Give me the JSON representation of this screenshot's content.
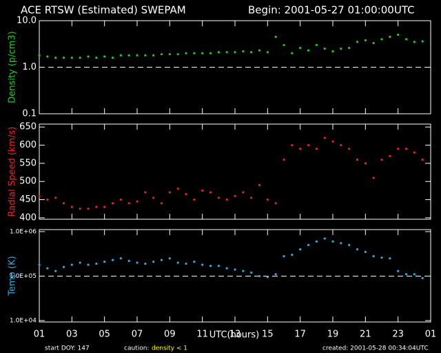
{
  "header": {
    "title": "ACE RTSW (Estimated) SWEPAM",
    "begin": "Begin: 2001-05-27 01:00:00UTC"
  },
  "x_label": "UTC(hours)",
  "footer": {
    "start": "start DOY: 147",
    "caution": "caution:",
    "caution_note": "density < 1",
    "created": "created: 2001-05-28 00:34:04UTC"
  },
  "chart_data": [
    {
      "type": "scatter",
      "ylabel": "Density (p/cm3)",
      "color": "#22cc22",
      "log": true,
      "ylim": [
        0.1,
        10
      ],
      "yticks": [
        {
          "value": 0.1,
          "label": "0.1"
        },
        {
          "value": 1,
          "label": "1.0"
        },
        {
          "value": 10,
          "label": "10.0"
        }
      ],
      "hline": 1,
      "xlim": [
        0,
        24
      ],
      "x": [
        0,
        0.5,
        1,
        1.5,
        2,
        2.5,
        3,
        3.5,
        4,
        4.5,
        5,
        5.5,
        6,
        6.5,
        7,
        7.5,
        8,
        8.5,
        9,
        9.5,
        10,
        10.5,
        11,
        11.5,
        12,
        12.5,
        13,
        13.5,
        14,
        14.5,
        15,
        15.5,
        16,
        16.5,
        17,
        17.5,
        18,
        18.5,
        19,
        19.5,
        20,
        20.5,
        21,
        21.5,
        22,
        22.5,
        23,
        23.5
      ],
      "values": [
        1.8,
        1.7,
        1.6,
        1.6,
        1.6,
        1.6,
        1.7,
        1.6,
        1.7,
        1.6,
        1.8,
        1.8,
        1.8,
        1.8,
        1.8,
        1.9,
        1.9,
        1.9,
        2.0,
        2.0,
        2.0,
        2.0,
        2.1,
        2.1,
        2.1,
        2.2,
        2.1,
        2.3,
        2.1,
        4.5,
        3.0,
        2.0,
        2.6,
        2.3,
        3.0,
        2.5,
        2.2,
        2.5,
        2.6,
        3.5,
        3.8,
        3.3,
        4.0,
        4.5,
        5.0,
        4.0,
        3.5,
        3.6
      ]
    },
    {
      "type": "scatter",
      "ylabel": "Radial Speed (km/s)",
      "color": "#ee2222",
      "log": false,
      "ylim": [
        396,
        658
      ],
      "yticks": [
        400,
        450,
        500,
        550,
        600,
        650
      ],
      "xlim": [
        0,
        24
      ],
      "x": [
        0,
        0.5,
        1,
        1.5,
        2,
        2.5,
        3,
        3.5,
        4,
        4.5,
        5,
        5.5,
        6,
        6.5,
        7,
        7.5,
        8,
        8.5,
        9,
        9.5,
        10,
        10.5,
        11,
        11.5,
        12,
        12.5,
        13,
        13.5,
        14,
        14.5,
        15,
        15.5,
        16,
        16.5,
        17,
        17.5,
        18,
        18.5,
        19,
        19.5,
        20,
        20.5,
        21,
        21.5,
        22,
        22.5,
        23,
        23.5
      ],
      "values": [
        460,
        450,
        455,
        440,
        430,
        425,
        425,
        430,
        430,
        440,
        450,
        440,
        445,
        470,
        455,
        440,
        470,
        480,
        465,
        450,
        475,
        470,
        455,
        450,
        460,
        470,
        455,
        490,
        450,
        440,
        560,
        600,
        590,
        600,
        590,
        620,
        610,
        600,
        590,
        560,
        550,
        510,
        560,
        570,
        590,
        590,
        580,
        560
      ]
    },
    {
      "type": "scatter",
      "ylabel": "Temp (K)",
      "color": "#33aadd",
      "log": true,
      "ylim": [
        9300,
        1110000
      ],
      "yticks": [
        {
          "value": 10000,
          "label": "1.0E+04"
        },
        {
          "value": 100000,
          "label": "1.0E+05"
        },
        {
          "value": 1000000,
          "label": "1.0E+06"
        }
      ],
      "hline": 100000,
      "xlim": [
        0,
        24
      ],
      "xticks": [
        {
          "value": 0,
          "label": "01"
        },
        {
          "value": 2,
          "label": "03"
        },
        {
          "value": 4,
          "label": "05"
        },
        {
          "value": 6,
          "label": "07"
        },
        {
          "value": 8,
          "label": "09"
        },
        {
          "value": 10,
          "label": "11"
        },
        {
          "value": 12,
          "label": "13"
        },
        {
          "value": 14,
          "label": "15"
        },
        {
          "value": 16,
          "label": "17"
        },
        {
          "value": 18,
          "label": "19"
        },
        {
          "value": 20,
          "label": "21"
        },
        {
          "value": 22,
          "label": "23"
        },
        {
          "value": 24,
          "label": "01"
        }
      ],
      "x": [
        0,
        0.5,
        1,
        1.5,
        2,
        2.5,
        3,
        3.5,
        4,
        4.5,
        5,
        5.5,
        6,
        6.5,
        7,
        7.5,
        8,
        8.5,
        9,
        9.5,
        10,
        10.5,
        11,
        11.5,
        12,
        12.5,
        13,
        13.5,
        14,
        14.5,
        15,
        15.5,
        16,
        16.5,
        17,
        17.5,
        18,
        18.5,
        19,
        19.5,
        20,
        20.5,
        21,
        21.5,
        22,
        22.5,
        23,
        23.5
      ],
      "values": [
        180000,
        150000,
        130000,
        160000,
        180000,
        200000,
        180000,
        190000,
        210000,
        230000,
        250000,
        220000,
        200000,
        190000,
        210000,
        230000,
        250000,
        200000,
        190000,
        210000,
        180000,
        170000,
        170000,
        150000,
        140000,
        130000,
        120000,
        100000,
        95000,
        110000,
        280000,
        300000,
        400000,
        500000,
        600000,
        700000,
        600000,
        550000,
        500000,
        400000,
        350000,
        280000,
        260000,
        250000,
        130000,
        110000,
        110000,
        90000
      ]
    }
  ]
}
